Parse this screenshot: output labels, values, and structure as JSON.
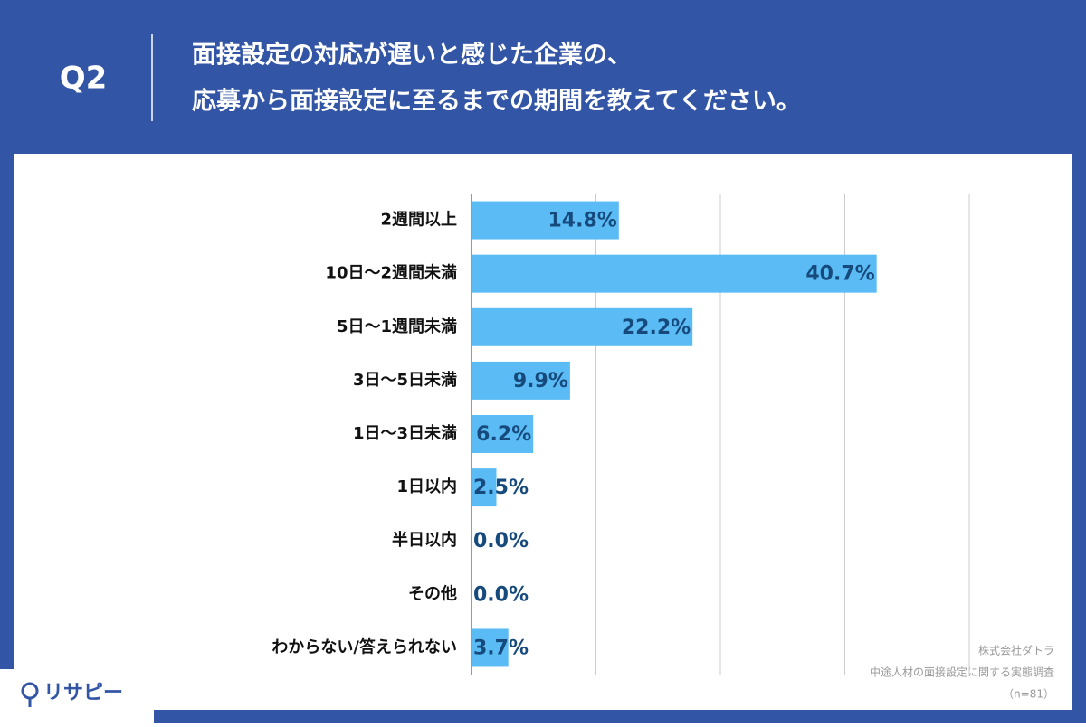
{
  "chart_data": {
    "type": "bar",
    "orientation": "horizontal",
    "question": "Q2",
    "title": [
      "面接設定の対応が遅いと感じた企業の、",
      "応募から面接設定に至るまでの期間を教えてください。"
    ],
    "categories": [
      "2週間以上",
      "10日〜2週間未満",
      "5日〜1週間未満",
      "3日〜5日未満",
      "1日〜3日未満",
      "1日以内",
      "半日以内",
      "その他",
      "わからない/答えられない"
    ],
    "values": [
      14.8,
      40.7,
      22.2,
      9.9,
      6.2,
      2.5,
      0.0,
      0.0,
      3.7
    ],
    "value_labels": [
      "14.8%",
      "40.7%",
      "22.2%",
      "9.9%",
      "6.2%",
      "2.5%",
      "0.0%",
      "0.0%",
      "3.7%"
    ],
    "color": "#5bbcf5",
    "xlim": [
      0,
      50
    ],
    "xticks": [
      0,
      12.5,
      25,
      37.5,
      50
    ],
    "grid": true,
    "source": [
      "株式会社ダトラ",
      "中途人材の面接設定に関する実態調査",
      "（n=81）"
    ],
    "logo": "リサピー"
  }
}
